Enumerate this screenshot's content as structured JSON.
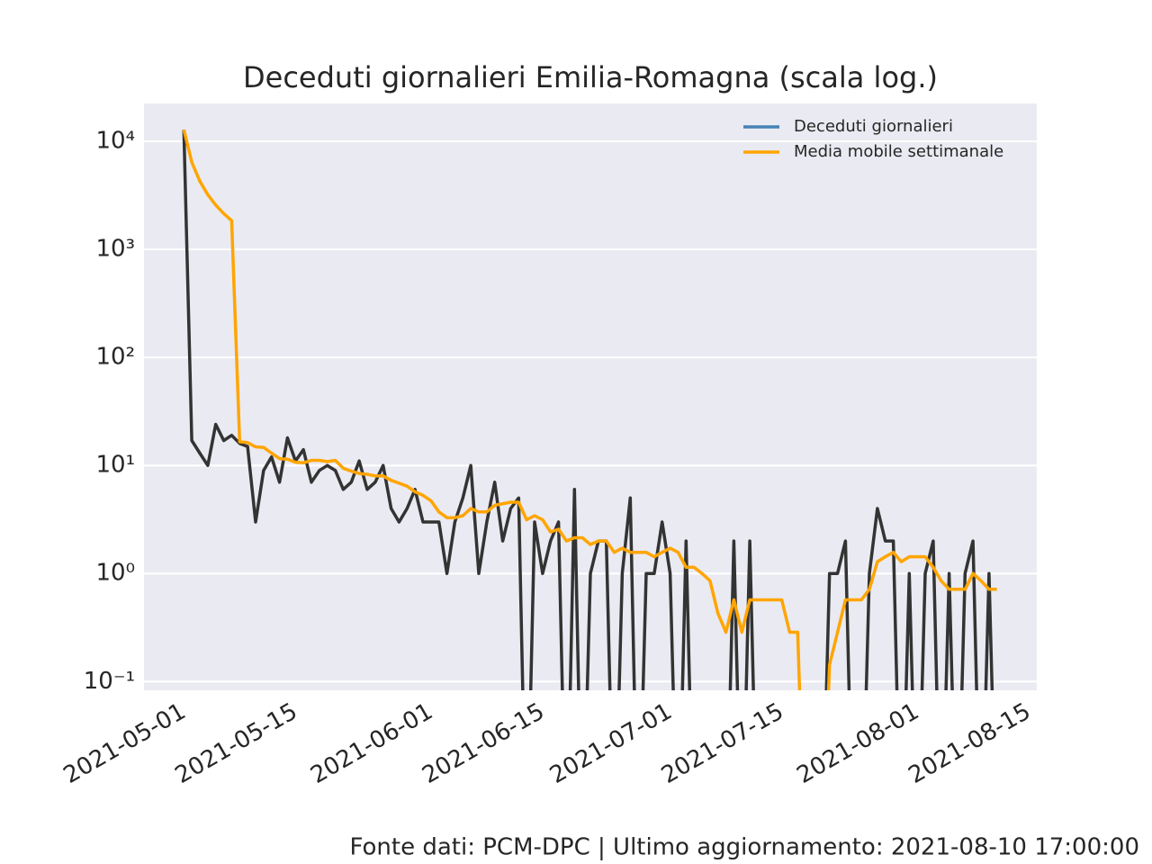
{
  "chart_data": {
    "type": "line",
    "title": "Deceduti giornalieri Emilia-Romagna (scala log.)",
    "footer": "Fonte dati: PCM-DPC | Ultimo aggiornamento: 2021-08-10 17:00:00",
    "x": [
      "2021-05-01",
      "2021-05-02",
      "2021-05-03",
      "2021-05-04",
      "2021-05-05",
      "2021-05-06",
      "2021-05-07",
      "2021-05-08",
      "2021-05-09",
      "2021-05-10",
      "2021-05-11",
      "2021-05-12",
      "2021-05-13",
      "2021-05-14",
      "2021-05-15",
      "2021-05-16",
      "2021-05-17",
      "2021-05-18",
      "2021-05-19",
      "2021-05-20",
      "2021-05-21",
      "2021-05-22",
      "2021-05-23",
      "2021-05-24",
      "2021-05-25",
      "2021-05-26",
      "2021-05-27",
      "2021-05-28",
      "2021-05-29",
      "2021-05-30",
      "2021-05-31",
      "2021-06-01",
      "2021-06-02",
      "2021-06-03",
      "2021-06-04",
      "2021-06-05",
      "2021-06-06",
      "2021-06-07",
      "2021-06-08",
      "2021-06-09",
      "2021-06-10",
      "2021-06-11",
      "2021-06-12",
      "2021-06-13",
      "2021-06-14",
      "2021-06-15",
      "2021-06-16",
      "2021-06-17",
      "2021-06-18",
      "2021-06-19",
      "2021-06-20",
      "2021-06-21",
      "2021-06-22",
      "2021-06-23",
      "2021-06-24",
      "2021-06-25",
      "2021-06-26",
      "2021-06-27",
      "2021-06-28",
      "2021-06-29",
      "2021-06-30",
      "2021-07-01",
      "2021-07-02",
      "2021-07-03",
      "2021-07-04",
      "2021-07-05",
      "2021-07-06",
      "2021-07-07",
      "2021-07-08",
      "2021-07-09",
      "2021-07-10",
      "2021-07-11",
      "2021-07-12",
      "2021-07-13",
      "2021-07-14",
      "2021-07-15",
      "2021-07-16",
      "2021-07-17",
      "2021-07-18",
      "2021-07-19",
      "2021-07-20",
      "2021-07-21",
      "2021-07-22",
      "2021-07-23",
      "2021-07-24",
      "2021-07-25",
      "2021-07-26",
      "2021-07-27",
      "2021-07-28",
      "2021-07-29",
      "2021-07-30",
      "2021-07-31",
      "2021-08-01",
      "2021-08-02",
      "2021-08-03",
      "2021-08-04",
      "2021-08-05",
      "2021-08-06",
      "2021-08-07",
      "2021-08-08",
      "2021-08-09",
      "2021-08-10",
      "2021-08-11"
    ],
    "series": [
      {
        "name": "Deceduti giornalieri",
        "color": "#333333",
        "legend_color": "#4682b4",
        "values": [
          12800,
          17,
          13,
          10,
          24,
          17,
          19,
          16,
          15,
          3,
          9,
          12,
          7,
          18,
          11,
          14,
          7,
          9,
          10,
          9,
          6,
          7,
          11,
          6,
          7,
          10,
          4,
          3,
          4,
          6,
          3,
          3,
          3,
          1,
          3,
          5,
          10,
          1,
          3,
          7,
          2,
          4,
          5,
          0,
          3,
          1,
          2,
          3,
          0,
          6,
          0,
          1,
          2,
          2,
          0,
          1,
          5,
          0,
          1,
          1,
          3,
          1,
          0,
          2,
          0,
          0,
          0,
          0,
          0,
          2,
          0,
          2,
          0,
          0,
          0,
          0,
          0,
          0,
          0,
          0,
          0,
          1,
          1,
          2,
          0,
          0,
          1,
          4,
          2,
          2,
          0,
          1,
          0,
          1,
          2,
          0,
          1,
          0,
          1,
          2,
          0,
          1,
          0
        ]
      },
      {
        "name": "Media mobile settimanale",
        "color": "#ffa500",
        "values": [
          12800,
          6408.5,
          4276.67,
          3210,
          2572.8,
          2146.83,
          1842.86,
          16.571,
          16.286,
          14.857,
          14.714,
          13,
          11.571,
          11.429,
          10.714,
          10.571,
          11.143,
          11.143,
          10.857,
          11.143,
          9.429,
          8.857,
          8.429,
          8.286,
          8,
          8,
          7.286,
          6.857,
          6.429,
          5.714,
          5.286,
          4.714,
          3.714,
          3.286,
          3.286,
          3.429,
          4,
          3.714,
          3.714,
          4.286,
          4.429,
          4.571,
          4.571,
          3.143,
          3.429,
          3.143,
          2.429,
          2.571,
          2,
          2.143,
          2.143,
          1.857,
          2,
          2,
          1.571,
          1.714,
          1.571,
          1.571,
          1.571,
          1.429,
          1.571,
          1.714,
          1.571,
          1.143,
          1.143,
          1,
          0.857,
          0.429,
          0.286,
          0.571,
          0.286,
          0.571,
          0.571,
          0.571,
          0.571,
          0.571,
          0.286,
          0.286,
          0,
          0,
          0,
          0.143,
          0.286,
          0.571,
          0.571,
          0.571,
          0.714,
          1.286,
          1.429,
          1.571,
          1.286,
          1.429,
          1.429,
          1.429,
          1.143,
          0.857,
          0.714,
          0.714,
          0.714,
          1,
          0.857,
          0.714,
          0.714
        ]
      }
    ],
    "xlim": [
      "2021-04-26",
      "2021-08-16"
    ],
    "xticks": [
      "2021-05-01",
      "2021-05-15",
      "2021-06-01",
      "2021-06-15",
      "2021-07-01",
      "2021-07-15",
      "2021-08-01",
      "2021-08-15"
    ],
    "log_scale": "y",
    "ylim": [
      0.083,
      22400
    ],
    "yticks": [
      {
        "value": 0.1,
        "label": "10⁻¹"
      },
      {
        "value": 1,
        "label": "10⁰"
      },
      {
        "value": 10,
        "label": "10¹"
      },
      {
        "value": 100,
        "label": "10²"
      },
      {
        "value": 1000,
        "label": "10³"
      },
      {
        "value": 10000,
        "label": "10⁴"
      }
    ],
    "grid": "y",
    "legend": "upper right"
  }
}
